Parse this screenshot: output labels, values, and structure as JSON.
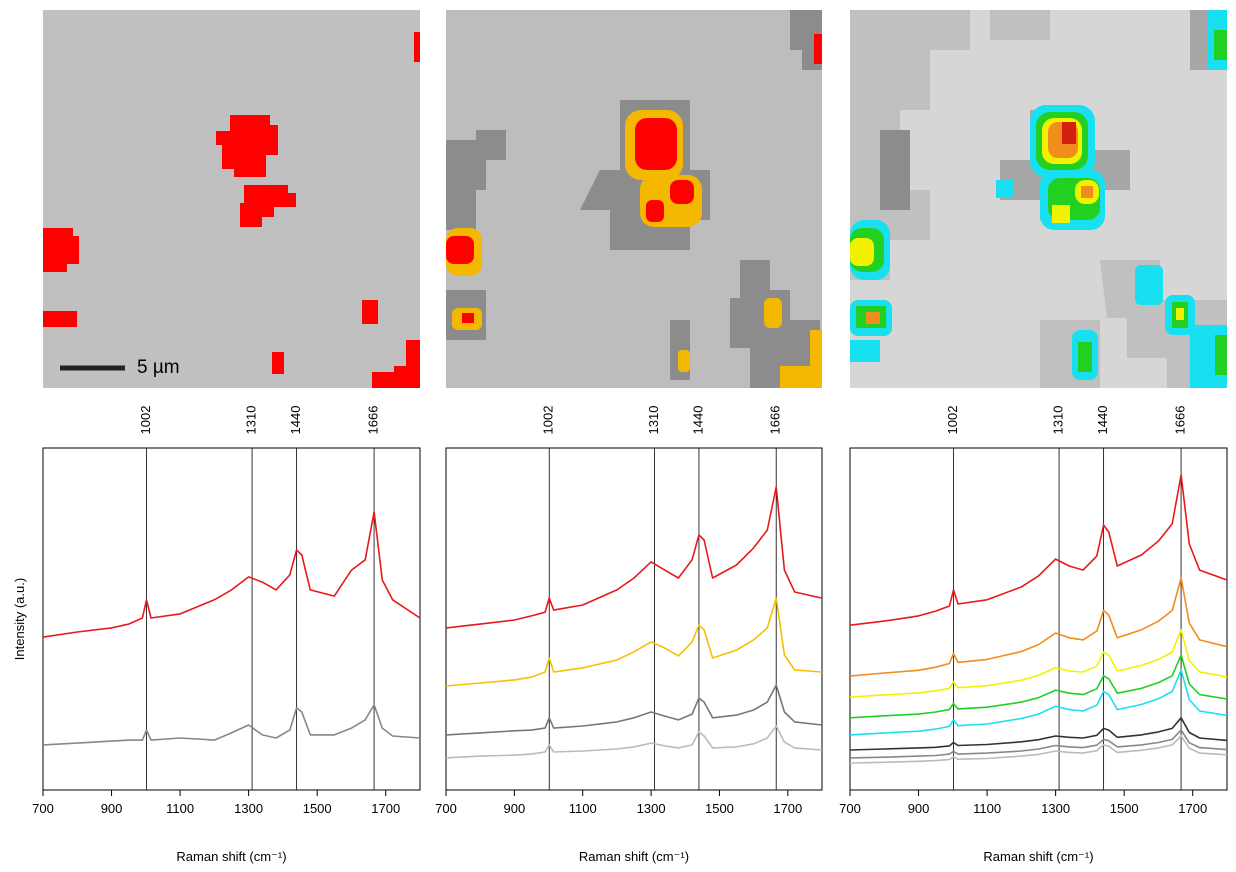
{
  "maps": {
    "scale_bar": "5 µm"
  },
  "chart_data": [
    {
      "type": "line",
      "xlabel": "Raman shift (cm⁻¹)",
      "ylabel": "Intensity (a.u.)",
      "xlim": [
        700,
        1800
      ],
      "xticks": [
        700,
        900,
        1100,
        1300,
        1500,
        1700
      ],
      "ylim": [
        0,
        100
      ],
      "vlines": [
        1002,
        1310,
        1440,
        1666
      ],
      "x": [
        700,
        800,
        900,
        950,
        990,
        1002,
        1015,
        1100,
        1200,
        1250,
        1300,
        1340,
        1380,
        1420,
        1440,
        1455,
        1480,
        1550,
        1600,
        1640,
        1666,
        1690,
        1720,
        1800
      ],
      "series": [
        {
          "color": "#e8191c",
          "values": [
            44.7,
            46.2,
            47.4,
            48.5,
            50.3,
            55.6,
            50.3,
            51.5,
            55.6,
            58.5,
            62.3,
            60.8,
            58.5,
            62.9,
            70.2,
            68.7,
            58.5,
            56.7,
            64.3,
            67.3,
            81.3,
            61.4,
            55.6,
            50.3
          ]
        },
        {
          "color": "#888888",
          "values": [
            13.2,
            13.7,
            14.3,
            14.6,
            14.6,
            17.5,
            14.6,
            15.2,
            14.6,
            16.7,
            19.0,
            16.1,
            15.2,
            17.5,
            24.0,
            22.8,
            16.1,
            16.1,
            18.1,
            20.5,
            24.9,
            18.1,
            15.8,
            15.2
          ]
        }
      ]
    },
    {
      "type": "line",
      "xlabel": "Raman shift (cm⁻¹)",
      "xlim": [
        700,
        1800
      ],
      "xticks": [
        700,
        900,
        1100,
        1300,
        1500,
        1700
      ],
      "ylim": [
        0,
        100
      ],
      "vlines": [
        1002,
        1310,
        1440,
        1666
      ],
      "x": [
        700,
        800,
        900,
        950,
        990,
        1002,
        1015,
        1100,
        1200,
        1250,
        1300,
        1340,
        1380,
        1420,
        1440,
        1455,
        1480,
        1550,
        1600,
        1640,
        1666,
        1690,
        1720,
        1800
      ],
      "series": [
        {
          "color": "#e8191c",
          "values": [
            47.4,
            48.5,
            49.7,
            50.9,
            52.0,
            56.1,
            52.6,
            54.1,
            58.5,
            62.0,
            66.7,
            64.3,
            62.0,
            67.3,
            74.6,
            73.1,
            62.0,
            65.8,
            70.8,
            76.0,
            88.6,
            64.3,
            57.9,
            56.1
          ]
        },
        {
          "color": "#f5c000",
          "values": [
            30.4,
            31.3,
            32.2,
            33.0,
            34.5,
            38.6,
            34.5,
            35.7,
            38.0,
            40.4,
            43.3,
            41.5,
            39.2,
            43.3,
            48.2,
            46.8,
            38.6,
            40.9,
            43.9,
            47.4,
            56.1,
            39.5,
            35.1,
            34.5
          ]
        },
        {
          "color": "#777777",
          "values": [
            16.1,
            16.7,
            17.3,
            17.5,
            18.1,
            21.1,
            18.1,
            18.7,
            19.9,
            21.1,
            22.8,
            21.6,
            20.5,
            22.2,
            26.9,
            25.7,
            21.1,
            21.9,
            23.4,
            25.7,
            30.7,
            22.8,
            19.9,
            19.0
          ]
        },
        {
          "color": "#bbbbbb",
          "values": [
            9.4,
            9.9,
            10.2,
            10.5,
            11.1,
            13.2,
            11.1,
            11.4,
            12.0,
            12.6,
            13.7,
            12.9,
            12.3,
            13.2,
            17.0,
            15.8,
            12.3,
            12.6,
            13.5,
            15.2,
            18.7,
            14.0,
            12.3,
            11.7
          ]
        }
      ]
    },
    {
      "type": "line",
      "xlabel": "Raman shift (cm⁻¹)",
      "xlim": [
        700,
        1800
      ],
      "xticks": [
        700,
        900,
        1100,
        1300,
        1500,
        1700
      ],
      "ylim": [
        0,
        100
      ],
      "vlines": [
        1002,
        1310,
        1440,
        1666
      ],
      "x": [
        700,
        800,
        900,
        950,
        990,
        1002,
        1015,
        1100,
        1200,
        1250,
        1300,
        1340,
        1380,
        1420,
        1440,
        1455,
        1480,
        1550,
        1600,
        1640,
        1666,
        1690,
        1720,
        1800
      ],
      "series": [
        {
          "color": "#e8191c",
          "values": [
            48.2,
            49.4,
            50.9,
            52.3,
            53.8,
            58.5,
            54.4,
            55.6,
            59.4,
            62.6,
            67.5,
            65.5,
            64.3,
            68.4,
            77.5,
            75.4,
            65.5,
            68.7,
            72.8,
            77.8,
            92.1,
            71.9,
            64.3,
            61.4
          ]
        },
        {
          "color": "#f28c1c",
          "values": [
            33.3,
            34.2,
            35.0,
            35.9,
            37.0,
            39.9,
            37.3,
            38.2,
            40.5,
            42.5,
            45.9,
            44.5,
            43.9,
            46.5,
            52.5,
            51.1,
            44.5,
            46.8,
            49.4,
            52.5,
            62.0,
            48.8,
            43.9,
            41.9
          ]
        },
        {
          "color": "#f2f200",
          "values": [
            27.2,
            27.8,
            28.4,
            29.0,
            29.7,
            31.7,
            29.9,
            30.5,
            32.1,
            33.5,
            35.8,
            34.8,
            34.5,
            36.2,
            40.3,
            39.4,
            34.8,
            36.4,
            38.2,
            40.3,
            46.8,
            37.8,
            34.5,
            33.1
          ]
        },
        {
          "color": "#22d022",
          "values": [
            21.1,
            21.7,
            22.2,
            22.8,
            23.5,
            25.3,
            23.7,
            24.2,
            25.7,
            27.0,
            29.2,
            28.3,
            27.9,
            29.6,
            33.4,
            32.5,
            28.3,
            29.7,
            31.4,
            33.4,
            39.5,
            31.0,
            27.9,
            26.6
          ]
        },
        {
          "color": "#19e0f0",
          "values": [
            16.1,
            16.7,
            17.2,
            17.8,
            18.6,
            20.5,
            18.8,
            19.3,
            20.9,
            22.2,
            24.5,
            23.5,
            23.1,
            24.8,
            28.8,
            27.9,
            23.5,
            25.0,
            26.7,
            28.8,
            35.1,
            26.4,
            23.1,
            21.8
          ]
        },
        {
          "color": "#333333",
          "values": [
            11.7,
            12.0,
            12.3,
            12.5,
            12.9,
            13.9,
            13.0,
            13.3,
            14.1,
            14.7,
            15.8,
            15.4,
            15.2,
            16.0,
            18.0,
            17.5,
            15.4,
            16.1,
            17.0,
            18.0,
            21.1,
            16.8,
            15.2,
            14.5
          ]
        },
        {
          "color": "#888888",
          "values": [
            9.4,
            9.6,
            9.9,
            10.1,
            10.5,
            11.3,
            10.5,
            10.8,
            11.4,
            12.0,
            13.0,
            12.6,
            12.4,
            13.1,
            14.8,
            14.4,
            12.6,
            13.2,
            13.9,
            14.8,
            17.5,
            13.8,
            12.4,
            11.8
          ]
        },
        {
          "color": "#bbbbbb",
          "values": [
            7.9,
            8.1,
            8.4,
            8.6,
            8.9,
            9.7,
            9.0,
            9.2,
            9.9,
            10.4,
            11.4,
            11.0,
            10.8,
            11.5,
            13.2,
            12.8,
            11.0,
            11.6,
            12.3,
            13.2,
            15.8,
            12.2,
            10.8,
            10.3
          ]
        }
      ]
    }
  ]
}
